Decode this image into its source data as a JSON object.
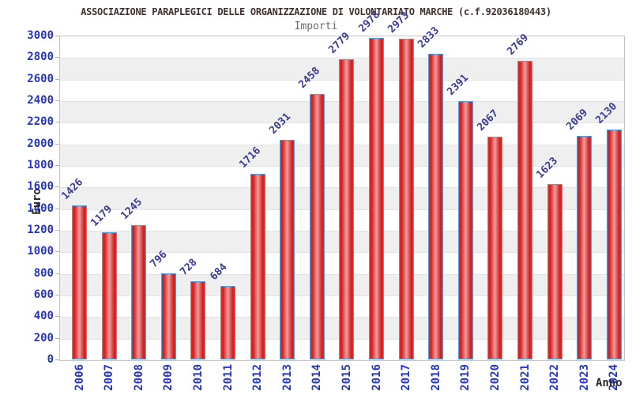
{
  "chart_data": {
    "type": "bar",
    "title": "ASSOCIAZIONE PARAPLEGICI DELLE ORGANIZZAZIONE DI VOLONTARIATO MARCHE (c.f.92036180443)",
    "subtitle": "Importi",
    "xlabel": "Anno",
    "ylabel": "Euro",
    "categories": [
      "2006",
      "2007",
      "2008",
      "2009",
      "2010",
      "2011",
      "2012",
      "2013",
      "2014",
      "2015",
      "2016",
      "2017",
      "2018",
      "2019",
      "2020",
      "2021",
      "2022",
      "2023",
      "2024"
    ],
    "values": [
      1426,
      1179,
      1245,
      796,
      728,
      684,
      1716,
      2031,
      2458,
      2779,
      2978,
      2973,
      2833,
      2391,
      2067,
      2769,
      1623,
      2069,
      2130
    ],
    "ylim": [
      0,
      3000
    ],
    "ytick_step": 200,
    "yticks": [
      0,
      200,
      400,
      600,
      800,
      1000,
      1200,
      1400,
      1600,
      1800,
      2000,
      2200,
      2400,
      2600,
      2800,
      3000
    ],
    "grid": "horizontal-bands-alternating",
    "legend": "none",
    "value_labels_rotation_deg": -45,
    "xtick_rotation_deg": -90,
    "colors": {
      "bar_edge_red": "#d01f1f",
      "bar_center_pink": "#f19c9c",
      "bar_border_blue": "#5b9bd5",
      "tick_label_blue": "#2433cc",
      "value_label_navy": "#3a3a99",
      "band_gray": "#efefef",
      "gridline_gray": "#e3e3e3",
      "plot_border_gray": "#c4c4c4",
      "title_color": "#403030",
      "axis_title_dark": "#2b2b2b",
      "subtitle_gray": "#6b6b6b",
      "background": "#ffffff"
    }
  }
}
